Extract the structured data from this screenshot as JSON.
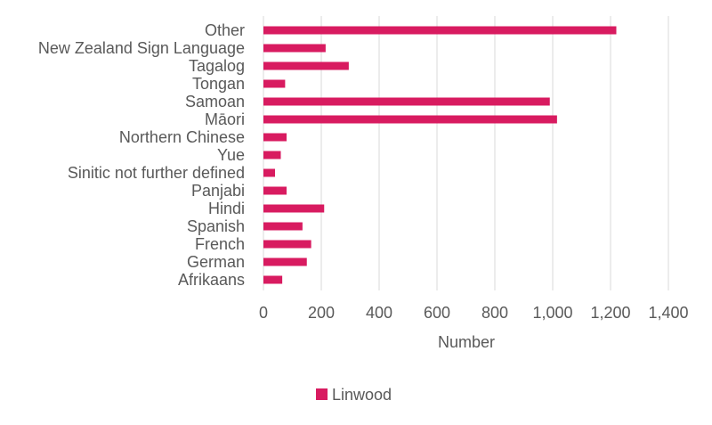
{
  "chart_data": {
    "type": "bar",
    "orientation": "horizontal",
    "categories": [
      "Other",
      "New Zealand Sign Language",
      "Tagalog",
      "Tongan",
      "Samoan",
      "Māori",
      "Northern Chinese",
      "Yue",
      "Sinitic not further defined",
      "Panjabi",
      "Hindi",
      "Spanish",
      "French",
      "German",
      "Afrikaans"
    ],
    "series": [
      {
        "name": "Linwood",
        "color": "#d81b60",
        "values": [
          1220,
          215,
          295,
          75,
          990,
          1015,
          80,
          60,
          40,
          80,
          210,
          135,
          165,
          150,
          65
        ]
      }
    ],
    "xlabel": "Number",
    "ylabel": "",
    "xlim": [
      0,
      1400
    ],
    "xticks": [
      0,
      200,
      400,
      600,
      800,
      1000,
      1200,
      1400
    ],
    "xtick_labels": [
      "0",
      "200",
      "400",
      "600",
      "800",
      "1,000",
      "1,200",
      "1,400"
    ],
    "grid": "vertical",
    "legend_position": "bottom"
  }
}
